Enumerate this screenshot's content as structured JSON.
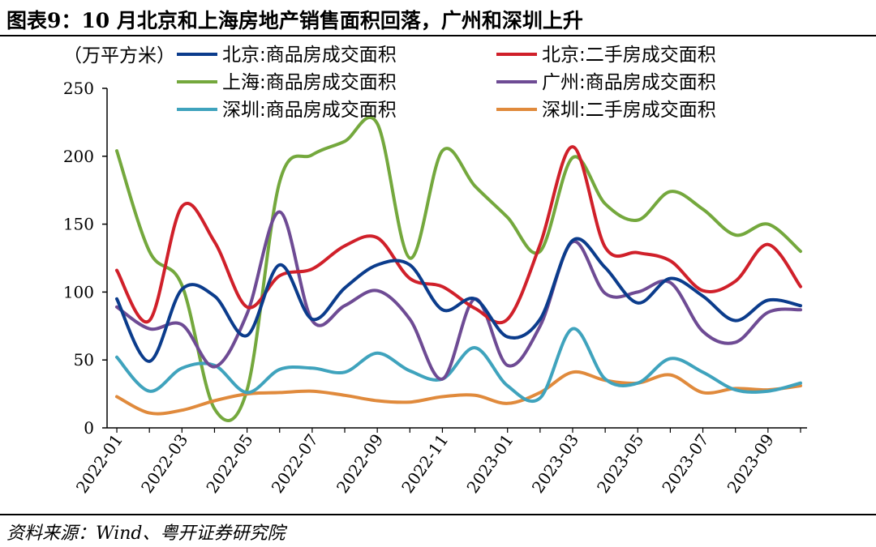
{
  "title": "图表9：10 月北京和上海房地产销售面积回落，广州和深圳上升",
  "source": "资料来源：Wind、粤开证券研究院",
  "chart_data": {
    "type": "line",
    "title": "10 月北京和上海房地产销售面积回落，广州和深圳上升",
    "ylabel": "（万平方米）",
    "xlabel": "",
    "ylim": [
      0,
      250
    ],
    "yticks": [
      0,
      50,
      100,
      150,
      200,
      250
    ],
    "xticks": [
      "2022-01",
      "2022-03",
      "2022-05",
      "2022-07",
      "2022-09",
      "2022-11",
      "2023-01",
      "2023-03",
      "2023-05",
      "2023-07",
      "2023-09"
    ],
    "categories": [
      "2022-01",
      "2022-02",
      "2022-03",
      "2022-04",
      "2022-05",
      "2022-06",
      "2022-07",
      "2022-08",
      "2022-09",
      "2022-10",
      "2022-11",
      "2022-12",
      "2023-01",
      "2023-02",
      "2023-03",
      "2023-04",
      "2023-05",
      "2023-06",
      "2023-07",
      "2023-08",
      "2023-09",
      "2023-10"
    ],
    "series": [
      {
        "name": "北京:商品房成交面积",
        "color": "#0b3c8c",
        "values": [
          95,
          49,
          102,
          97,
          68,
          120,
          80,
          103,
          120,
          120,
          87,
          95,
          67,
          80,
          138,
          118,
          92,
          110,
          97,
          79,
          94,
          90
        ]
      },
      {
        "name": "北京:二手房成交面积",
        "color": "#d0202a",
        "values": [
          116,
          79,
          163,
          137,
          89,
          112,
          117,
          134,
          140,
          110,
          104,
          88,
          80,
          135,
          207,
          133,
          129,
          123,
          101,
          108,
          135,
          104
        ]
      },
      {
        "name": "上海:商品房成交面积",
        "color": "#74a83d",
        "values": [
          204,
          130,
          105,
          14,
          28,
          181,
          201,
          211,
          224,
          125,
          204,
          178,
          155,
          130,
          199,
          165,
          153,
          174,
          161,
          142,
          150,
          130
        ]
      },
      {
        "name": "广州:商品房成交面积",
        "color": "#6e4b94",
        "values": [
          89,
          73,
          76,
          45,
          84,
          159,
          79,
          90,
          101,
          80,
          36,
          95,
          46,
          75,
          137,
          99,
          100,
          107,
          71,
          63,
          85,
          87
        ]
      },
      {
        "name": "深圳:商品房成交面积",
        "color": "#3fa3bd",
        "values": [
          52,
          27,
          44,
          46,
          26,
          43,
          44,
          41,
          55,
          42,
          36,
          59,
          31,
          22,
          73,
          36,
          33,
          51,
          41,
          28,
          27,
          33
        ]
      },
      {
        "name": "深圳:二手房成交面积",
        "color": "#e08a3c",
        "values": [
          23,
          11,
          13,
          20,
          25,
          26,
          27,
          24,
          20,
          19,
          23,
          24,
          18,
          26,
          41,
          35,
          33,
          39,
          26,
          29,
          28,
          31
        ]
      }
    ],
    "legend_position": "top",
    "grid": false
  }
}
